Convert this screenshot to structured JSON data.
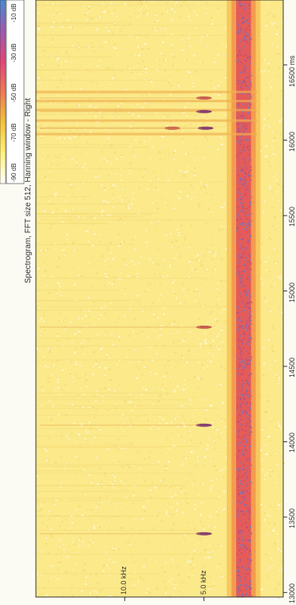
{
  "chart_data": {
    "type": "heatmap",
    "title": "Spectrogram, FFT size 512, Hanning window - Right",
    "x_axis": {
      "range": [
        12970,
        16930
      ],
      "ticks": [
        13000,
        13500,
        14000,
        14500,
        15000,
        15500,
        16000,
        16500
      ],
      "tick_labels": [
        "13000",
        "13500",
        "14000",
        "14500",
        "15000",
        "15500",
        "16000",
        "16500 ms"
      ]
    },
    "y_axis": {
      "range": [
        0,
        15.6
      ],
      "ticks": [
        5.0,
        10.0
      ],
      "tick_labels": [
        "5.0 kHz",
        "10.0 kHz"
      ]
    },
    "colorbar": {
      "tick_labels": [
        "-90 dB",
        "-70 dB",
        "-50 dB",
        "-30 dB",
        "-10 dB"
      ],
      "colors": [
        "#ffffff",
        "#fff27a",
        "#f4c23a",
        "#ee7a55",
        "#e2467a",
        "#9a5bb0",
        "#4a8ad6"
      ]
    },
    "colors": {
      "background": "#fbfaf3",
      "noise_yellow": "#fbe98a",
      "band_orange": "#f2944c",
      "band_red": "#e0505a",
      "band_blue": "#5f7fd0"
    },
    "band": {
      "center_khz": 2.5,
      "half_width_khz": 0.85
    },
    "events": [
      {
        "t": 13390,
        "f": 5.0,
        "level_db": -25
      },
      {
        "t": 14110,
        "f": 5.0,
        "level_db": -20
      },
      {
        "t": 14760,
        "f": 5.0,
        "level_db": -30
      },
      {
        "t": 16080,
        "f": 7.0,
        "level_db": -35
      },
      {
        "t": 16080,
        "f": 4.9,
        "level_db": -25
      },
      {
        "t": 16190,
        "f": 5.0,
        "level_db": -20
      },
      {
        "t": 16280,
        "f": 5.0,
        "level_db": -30
      }
    ]
  }
}
